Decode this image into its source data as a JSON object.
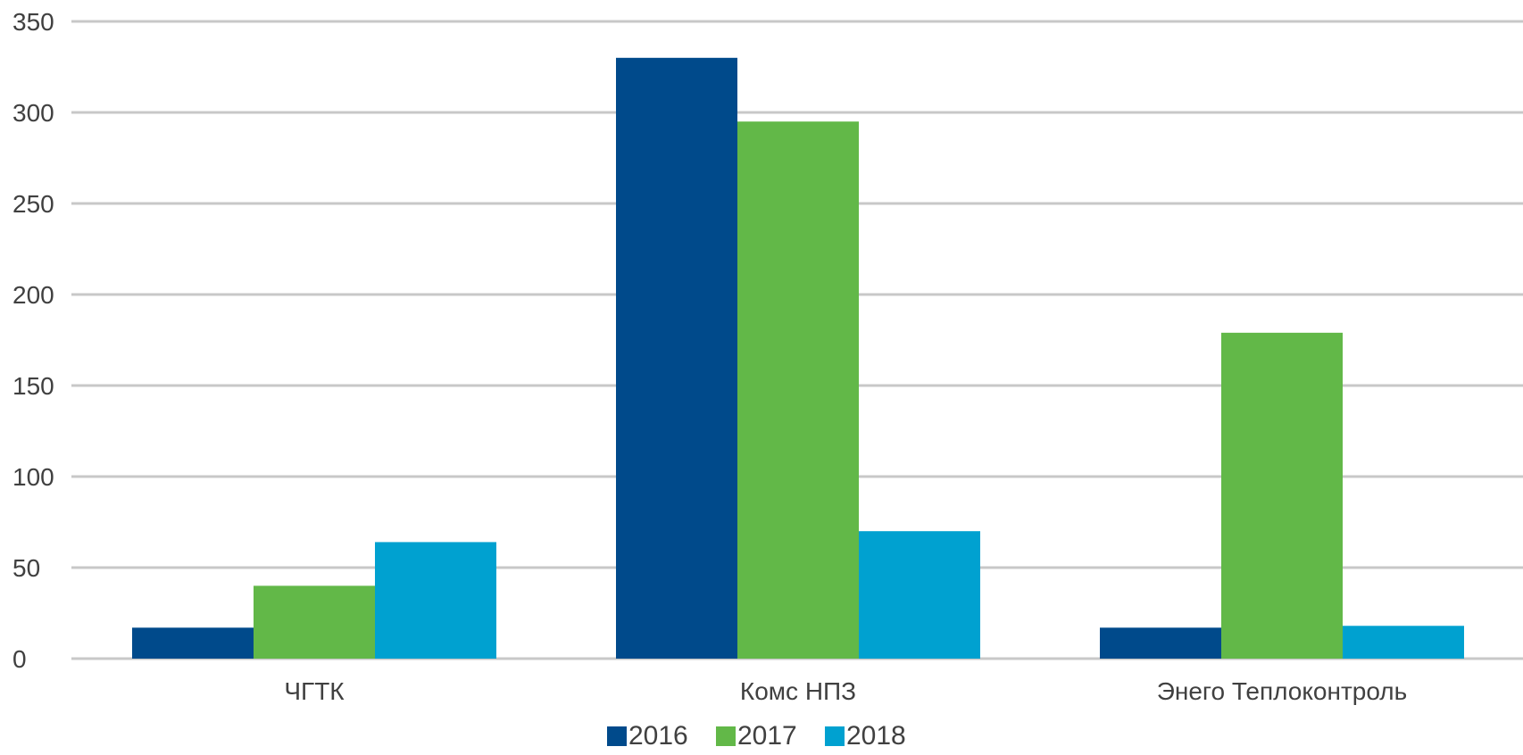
{
  "chart_data": {
    "type": "bar",
    "title": "",
    "xlabel": "",
    "ylabel": "",
    "categories": [
      "ЧГТК",
      "Комс НПЗ",
      "Энего Теплоконтроль"
    ],
    "series": [
      {
        "name": "2016",
        "color": "#004a8b",
        "values": [
          17,
          330,
          17
        ]
      },
      {
        "name": "2017",
        "color": "#62b848",
        "values": [
          40,
          295,
          179
        ]
      },
      {
        "name": "2018",
        "color": "#00a1d0",
        "values": [
          64,
          70,
          18
        ]
      }
    ],
    "ylim": [
      0,
      350
    ],
    "yticks": [
      0,
      50,
      100,
      150,
      200,
      250,
      300,
      350
    ],
    "grid": true,
    "legend_position": "bottom",
    "gridline_color": "#c8c8c8",
    "text_color": "#404040"
  }
}
